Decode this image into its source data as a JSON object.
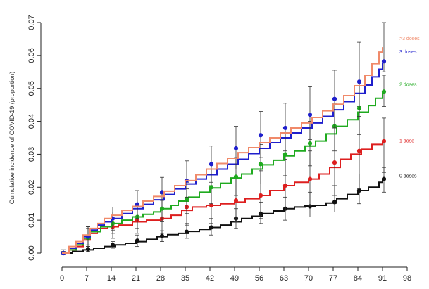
{
  "chart_data": {
    "type": "line",
    "title": "",
    "xlabel": "",
    "ylabel": "Cumulative incidence of COVID-19 (proportion)",
    "xlim": [
      0,
      98
    ],
    "ylim": [
      0,
      0.07
    ],
    "xticks": [
      0,
      7,
      14,
      21,
      28,
      35,
      42,
      49,
      56,
      63,
      70,
      77,
      84,
      91,
      98
    ],
    "yticks": [
      0.0,
      0.01,
      0.02,
      0.03,
      0.04,
      0.05,
      0.06,
      0.07
    ],
    "xtick_labels": [
      "0",
      "7",
      "14",
      "21",
      "28",
      "35",
      "42",
      "49",
      "56",
      "63",
      "70",
      "77",
      "84",
      "91",
      "98"
    ],
    "ytick_labels": [
      "0.00",
      "0.01",
      "0.02",
      "0.03",
      "0.04",
      "0.05",
      "0.06",
      "0.07"
    ],
    "grid": false,
    "legend": "inline labels at right end of each series",
    "series": [
      {
        "name": "0 doses",
        "color": "#111111",
        "steps": [
          [
            0,
            0.0
          ],
          [
            3,
            0.0005
          ],
          [
            6,
            0.001
          ],
          [
            9,
            0.0015
          ],
          [
            12,
            0.002
          ],
          [
            15,
            0.0025
          ],
          [
            18,
            0.003
          ],
          [
            21,
            0.0035
          ],
          [
            24,
            0.0042
          ],
          [
            27,
            0.005
          ],
          [
            30,
            0.0056
          ],
          [
            33,
            0.006
          ],
          [
            36,
            0.0066
          ],
          [
            39,
            0.0072
          ],
          [
            42,
            0.0078
          ],
          [
            45,
            0.0085
          ],
          [
            48,
            0.0095
          ],
          [
            51,
            0.0105
          ],
          [
            54,
            0.0112
          ],
          [
            57,
            0.012
          ],
          [
            60,
            0.0128
          ],
          [
            63,
            0.0135
          ],
          [
            66,
            0.014
          ],
          [
            69,
            0.0143
          ],
          [
            72,
            0.0145
          ],
          [
            75,
            0.0152
          ],
          [
            78,
            0.0165
          ],
          [
            81,
            0.0178
          ],
          [
            84,
            0.019
          ],
          [
            87,
            0.02
          ],
          [
            90,
            0.0215
          ],
          [
            91,
            0.0225
          ]
        ],
        "points": [
          [
            0,
            0.0
          ],
          [
            7,
            0.0012
          ],
          [
            14,
            0.0025
          ],
          [
            21,
            0.0038
          ],
          [
            28,
            0.0052
          ],
          [
            35,
            0.0065
          ],
          [
            42,
            0.0078
          ],
          [
            49,
            0.0105
          ],
          [
            56,
            0.012
          ],
          [
            63,
            0.0135
          ],
          [
            70,
            0.0142
          ],
          [
            77,
            0.0155
          ],
          [
            84,
            0.019
          ],
          [
            91,
            0.0225
          ]
        ],
        "err": [
          [
            0,
            0.0,
            0.0005
          ],
          [
            7,
            0.0005,
            0.002
          ],
          [
            14,
            0.0015,
            0.0035
          ],
          [
            21,
            0.002,
            0.0055
          ],
          [
            28,
            0.0035,
            0.0068
          ],
          [
            35,
            0.0045,
            0.009
          ],
          [
            42,
            0.0055,
            0.0105
          ],
          [
            49,
            0.0075,
            0.0135
          ],
          [
            56,
            0.009,
            0.0155
          ],
          [
            63,
            0.01,
            0.017
          ],
          [
            70,
            0.011,
            0.0185
          ],
          [
            77,
            0.0125,
            0.0205
          ],
          [
            84,
            0.015,
            0.024
          ],
          [
            91,
            0.0185,
            0.026
          ]
        ]
      },
      {
        "name": "1 dose",
        "color": "#dd1f1f",
        "steps": [
          [
            0,
            0.0
          ],
          [
            2,
            0.001
          ],
          [
            4,
            0.002
          ],
          [
            6,
            0.004
          ],
          [
            8,
            0.006
          ],
          [
            10,
            0.0075
          ],
          [
            13,
            0.008
          ],
          [
            16,
            0.0085
          ],
          [
            20,
            0.0095
          ],
          [
            24,
            0.01
          ],
          [
            28,
            0.0105
          ],
          [
            31,
            0.0115
          ],
          [
            34,
            0.013
          ],
          [
            37,
            0.014
          ],
          [
            41,
            0.0145
          ],
          [
            45,
            0.015
          ],
          [
            49,
            0.0155
          ],
          [
            52,
            0.0165
          ],
          [
            56,
            0.0175
          ],
          [
            59,
            0.019
          ],
          [
            63,
            0.0205
          ],
          [
            66,
            0.0215
          ],
          [
            70,
            0.0225
          ],
          [
            73,
            0.024
          ],
          [
            76,
            0.026
          ],
          [
            79,
            0.0285
          ],
          [
            82,
            0.03
          ],
          [
            85,
            0.0315
          ],
          [
            88,
            0.033
          ],
          [
            91,
            0.034
          ]
        ],
        "points": [
          [
            0,
            0.0
          ],
          [
            7,
            0.005
          ],
          [
            14,
            0.008
          ],
          [
            21,
            0.01
          ],
          [
            28,
            0.0105
          ],
          [
            35,
            0.014
          ],
          [
            42,
            0.0145
          ],
          [
            49,
            0.016
          ],
          [
            56,
            0.0175
          ],
          [
            63,
            0.0205
          ],
          [
            70,
            0.0225
          ],
          [
            77,
            0.0275
          ],
          [
            84,
            0.031
          ],
          [
            91,
            0.034
          ]
        ],
        "err": [
          [
            0,
            0.0,
            0.001
          ],
          [
            7,
            0.002,
            0.008
          ],
          [
            14,
            0.0045,
            0.0115
          ],
          [
            21,
            0.006,
            0.015
          ],
          [
            28,
            0.006,
            0.016
          ],
          [
            35,
            0.0085,
            0.0195
          ],
          [
            42,
            0.009,
            0.0205
          ],
          [
            49,
            0.0095,
            0.023
          ],
          [
            56,
            0.0105,
            0.025
          ],
          [
            63,
            0.0125,
            0.0285
          ],
          [
            70,
            0.0145,
            0.031
          ],
          [
            77,
            0.0175,
            0.038
          ],
          [
            84,
            0.0195,
            0.0445
          ],
          [
            91,
            0.0245,
            0.041
          ]
        ]
      },
      {
        "name": "2 doses",
        "color": "#1faa1f",
        "steps": [
          [
            0,
            0.0
          ],
          [
            2,
            0.001
          ],
          [
            4,
            0.0025
          ],
          [
            6,
            0.0045
          ],
          [
            8,
            0.0065
          ],
          [
            11,
            0.008
          ],
          [
            14,
            0.009
          ],
          [
            17,
            0.01
          ],
          [
            20,
            0.011
          ],
          [
            23,
            0.0118
          ],
          [
            26,
            0.0125
          ],
          [
            28,
            0.0135
          ],
          [
            31,
            0.0145
          ],
          [
            33,
            0.0158
          ],
          [
            36,
            0.017
          ],
          [
            39,
            0.0185
          ],
          [
            42,
            0.0198
          ],
          [
            45,
            0.0212
          ],
          [
            48,
            0.0228
          ],
          [
            51,
            0.024
          ],
          [
            54,
            0.0255
          ],
          [
            57,
            0.0268
          ],
          [
            60,
            0.0282
          ],
          [
            63,
            0.0295
          ],
          [
            66,
            0.031
          ],
          [
            69,
            0.0325
          ],
          [
            72,
            0.034
          ],
          [
            75,
            0.0362
          ],
          [
            78,
            0.0385
          ],
          [
            81,
            0.0405
          ],
          [
            84,
            0.0428
          ],
          [
            87,
            0.0448
          ],
          [
            89,
            0.047
          ],
          [
            91,
            0.049
          ]
        ],
        "points": [
          [
            0,
            0.0
          ],
          [
            7,
            0.0045
          ],
          [
            14,
            0.009
          ],
          [
            21,
            0.011
          ],
          [
            28,
            0.0135
          ],
          [
            35,
            0.0165
          ],
          [
            42,
            0.02
          ],
          [
            49,
            0.0232
          ],
          [
            56,
            0.027
          ],
          [
            63,
            0.03
          ],
          [
            70,
            0.0333
          ],
          [
            77,
            0.0385
          ],
          [
            84,
            0.044
          ],
          [
            91,
            0.049
          ]
        ],
        "err": [
          [
            0,
            0.0,
            0.001
          ],
          [
            7,
            0.002,
            0.0075
          ],
          [
            14,
            0.006,
            0.0125
          ],
          [
            21,
            0.0075,
            0.0145
          ],
          [
            28,
            0.0095,
            0.018
          ],
          [
            35,
            0.012,
            0.0215
          ],
          [
            42,
            0.015,
            0.0255
          ],
          [
            49,
            0.0175,
            0.029
          ],
          [
            56,
            0.021,
            0.033
          ],
          [
            63,
            0.0235,
            0.0365
          ],
          [
            70,
            0.0265,
            0.04
          ],
          [
            77,
            0.031,
            0.0455
          ],
          [
            84,
            0.036,
            0.052
          ],
          [
            91,
            0.0445,
            0.054
          ]
        ]
      },
      {
        "name": "3 doses",
        "color": "#1f1fcc",
        "steps": [
          [
            0,
            0.0
          ],
          [
            2,
            0.0015
          ],
          [
            4,
            0.003
          ],
          [
            6,
            0.005
          ],
          [
            8,
            0.007
          ],
          [
            10,
            0.0085
          ],
          [
            12,
            0.0095
          ],
          [
            14,
            0.0105
          ],
          [
            17,
            0.012
          ],
          [
            20,
            0.0135
          ],
          [
            23,
            0.0148
          ],
          [
            26,
            0.0162
          ],
          [
            29,
            0.0178
          ],
          [
            32,
            0.0195
          ],
          [
            35,
            0.021
          ],
          [
            38,
            0.0225
          ],
          [
            41,
            0.0238
          ],
          [
            44,
            0.0255
          ],
          [
            47,
            0.027
          ],
          [
            50,
            0.0285
          ],
          [
            53,
            0.0302
          ],
          [
            56,
            0.0318
          ],
          [
            59,
            0.0335
          ],
          [
            62,
            0.035
          ],
          [
            65,
            0.0365
          ],
          [
            68,
            0.038
          ],
          [
            71,
            0.0395
          ],
          [
            74,
            0.0415
          ],
          [
            77,
            0.0435
          ],
          [
            80,
            0.046
          ],
          [
            83,
            0.0485
          ],
          [
            86,
            0.051
          ],
          [
            88,
            0.0535
          ],
          [
            90,
            0.0558
          ],
          [
            91,
            0.0578
          ]
        ],
        "points": [
          [
            0,
            0.0
          ],
          [
            7,
            0.005
          ],
          [
            14,
            0.0105
          ],
          [
            21,
            0.0148
          ],
          [
            28,
            0.0185
          ],
          [
            35,
            0.022
          ],
          [
            42,
            0.027
          ],
          [
            49,
            0.0318
          ],
          [
            56,
            0.0358
          ],
          [
            63,
            0.038
          ],
          [
            70,
            0.042
          ],
          [
            77,
            0.0468
          ],
          [
            84,
            0.052
          ],
          [
            91,
            0.0582
          ]
        ],
        "err": [
          [
            0,
            0.0,
            0.001
          ],
          [
            7,
            0.0025,
            0.008
          ],
          [
            14,
            0.007,
            0.014
          ],
          [
            21,
            0.0105,
            0.019
          ],
          [
            28,
            0.014,
            0.023
          ],
          [
            35,
            0.017,
            0.028
          ],
          [
            42,
            0.0215,
            0.0325
          ],
          [
            49,
            0.0255,
            0.0385
          ],
          [
            56,
            0.029,
            0.043
          ],
          [
            63,
            0.031,
            0.0455
          ],
          [
            70,
            0.0345,
            0.0505
          ],
          [
            77,
            0.038,
            0.0555
          ],
          [
            84,
            0.0415,
            0.064
          ],
          [
            91,
            0.055,
            0.07
          ]
        ]
      },
      {
        "name": ">3 doses",
        "color": "#f08a6a",
        "steps": [
          [
            0,
            0.0
          ],
          [
            2,
            0.002
          ],
          [
            4,
            0.0035
          ],
          [
            6,
            0.0055
          ],
          [
            8,
            0.0075
          ],
          [
            10,
            0.009
          ],
          [
            12,
            0.0105
          ],
          [
            14,
            0.0115
          ],
          [
            17,
            0.013
          ],
          [
            20,
            0.0142
          ],
          [
            23,
            0.0158
          ],
          [
            26,
            0.0172
          ],
          [
            29,
            0.0188
          ],
          [
            32,
            0.0205
          ],
          [
            35,
            0.022
          ],
          [
            38,
            0.0238
          ],
          [
            41,
            0.0255
          ],
          [
            44,
            0.0272
          ],
          [
            47,
            0.0288
          ],
          [
            50,
            0.0305
          ],
          [
            53,
            0.032
          ],
          [
            56,
            0.0335
          ],
          [
            59,
            0.035
          ],
          [
            62,
            0.0365
          ],
          [
            65,
            0.038
          ],
          [
            68,
            0.0395
          ],
          [
            71,
            0.0412
          ],
          [
            74,
            0.0432
          ],
          [
            77,
            0.0452
          ],
          [
            80,
            0.0478
          ],
          [
            83,
            0.0508
          ],
          [
            86,
            0.054
          ],
          [
            88,
            0.0575
          ],
          [
            90,
            0.061
          ],
          [
            91,
            0.0625
          ]
        ],
        "points": [],
        "err": []
      }
    ]
  }
}
